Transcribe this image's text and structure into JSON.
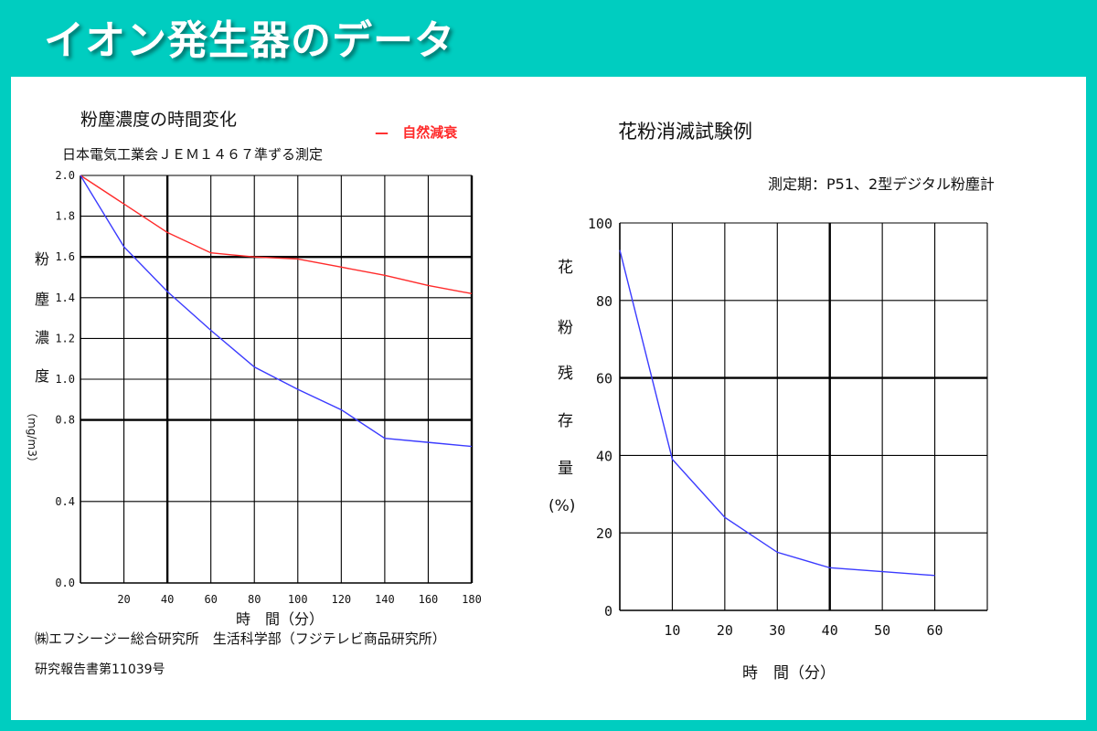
{
  "page_title": "イオン発生器のデータ",
  "colors": {
    "background": "#00cdc0",
    "natural": "#ff2a2a",
    "device": "#3b3bff",
    "grid": "#000000"
  },
  "left": {
    "title": "粉塵濃度の時間変化",
    "legend_label": "自然減衰",
    "subtitle": "日本電気工業会ＪＥＭ１４６７準ずる測定",
    "ylabel_chars": [
      "粉",
      "塵",
      "濃",
      "度"
    ],
    "ylabel_unit": "（mg/m3）",
    "xlabel": "時　間（分）",
    "source_line1": "㈱エフシージー総合研究所　生活科学部（フジテレビ商品研究所）",
    "source_line2": "研究報告書第11039号"
  },
  "right": {
    "title": "花粉消滅試験例",
    "subtitle": "測定期：P51、2型デジタル粉塵計",
    "ylabel_chars": [
      "花",
      "粉",
      "残",
      "存",
      "量"
    ],
    "ylabel_unit": "(%)",
    "xlabel": "時　間（分）"
  },
  "chart_data": [
    {
      "type": "line",
      "title": "粉塵濃度の時間変化",
      "subtitle": "日本電気工業会ＪＥＭ１４６７準ずる測定",
      "xlabel": "時　間（分）",
      "ylabel": "粉塵濃度（mg/m3）",
      "xlim": [
        0,
        180
      ],
      "ylim": [
        0,
        2.0
      ],
      "x_ticks": [
        "20",
        "40",
        "60",
        "80",
        "100",
        "120",
        "140",
        "160",
        "180"
      ],
      "y_ticks": [
        "0.0",
        "0.4",
        "0.8",
        "1.0",
        "1.2",
        "1.4",
        "1.6",
        "1.8",
        "2.0"
      ],
      "y_tick_values": [
        0,
        0.4,
        0.8,
        1.0,
        1.2,
        1.4,
        1.6,
        1.8,
        2.0
      ],
      "grid": true,
      "legend": "top-right",
      "series": [
        {
          "name": "自然減衰",
          "color": "#ff2a2a",
          "x": [
            0,
            20,
            40,
            60,
            80,
            100,
            120,
            140,
            160,
            180
          ],
          "values": [
            2.0,
            1.86,
            1.72,
            1.62,
            1.6,
            1.59,
            1.55,
            1.51,
            1.46,
            1.42
          ]
        },
        {
          "color": "#3b3bff",
          "x": [
            0,
            20,
            40,
            60,
            80,
            100,
            120,
            140,
            160,
            180
          ],
          "values": [
            2.0,
            1.65,
            1.43,
            1.24,
            1.06,
            0.95,
            0.85,
            0.71,
            0.69,
            0.67
          ]
        }
      ]
    },
    {
      "type": "line",
      "title": "花粉消滅試験例",
      "subtitle": "測定期：P51、2型デジタル粉塵計",
      "xlabel": "時　間（分）",
      "ylabel": "花粉残存量(%)",
      "xlim": [
        0,
        70
      ],
      "ylim": [
        0,
        100
      ],
      "x_ticks": [
        "10",
        "20",
        "30",
        "40",
        "50",
        "60"
      ],
      "x_tick_values": [
        10,
        20,
        30,
        40,
        50,
        60
      ],
      "y_ticks": [
        "0",
        "20",
        "40",
        "60",
        "80",
        "100"
      ],
      "y_tick_values": [
        0,
        20,
        40,
        60,
        80,
        100
      ],
      "grid": true,
      "series": [
        {
          "color": "#3b3bff",
          "x": [
            0,
            10,
            20,
            30,
            40,
            50,
            60
          ],
          "values": [
            93,
            39,
            24,
            15,
            11,
            10,
            9
          ]
        }
      ]
    }
  ]
}
